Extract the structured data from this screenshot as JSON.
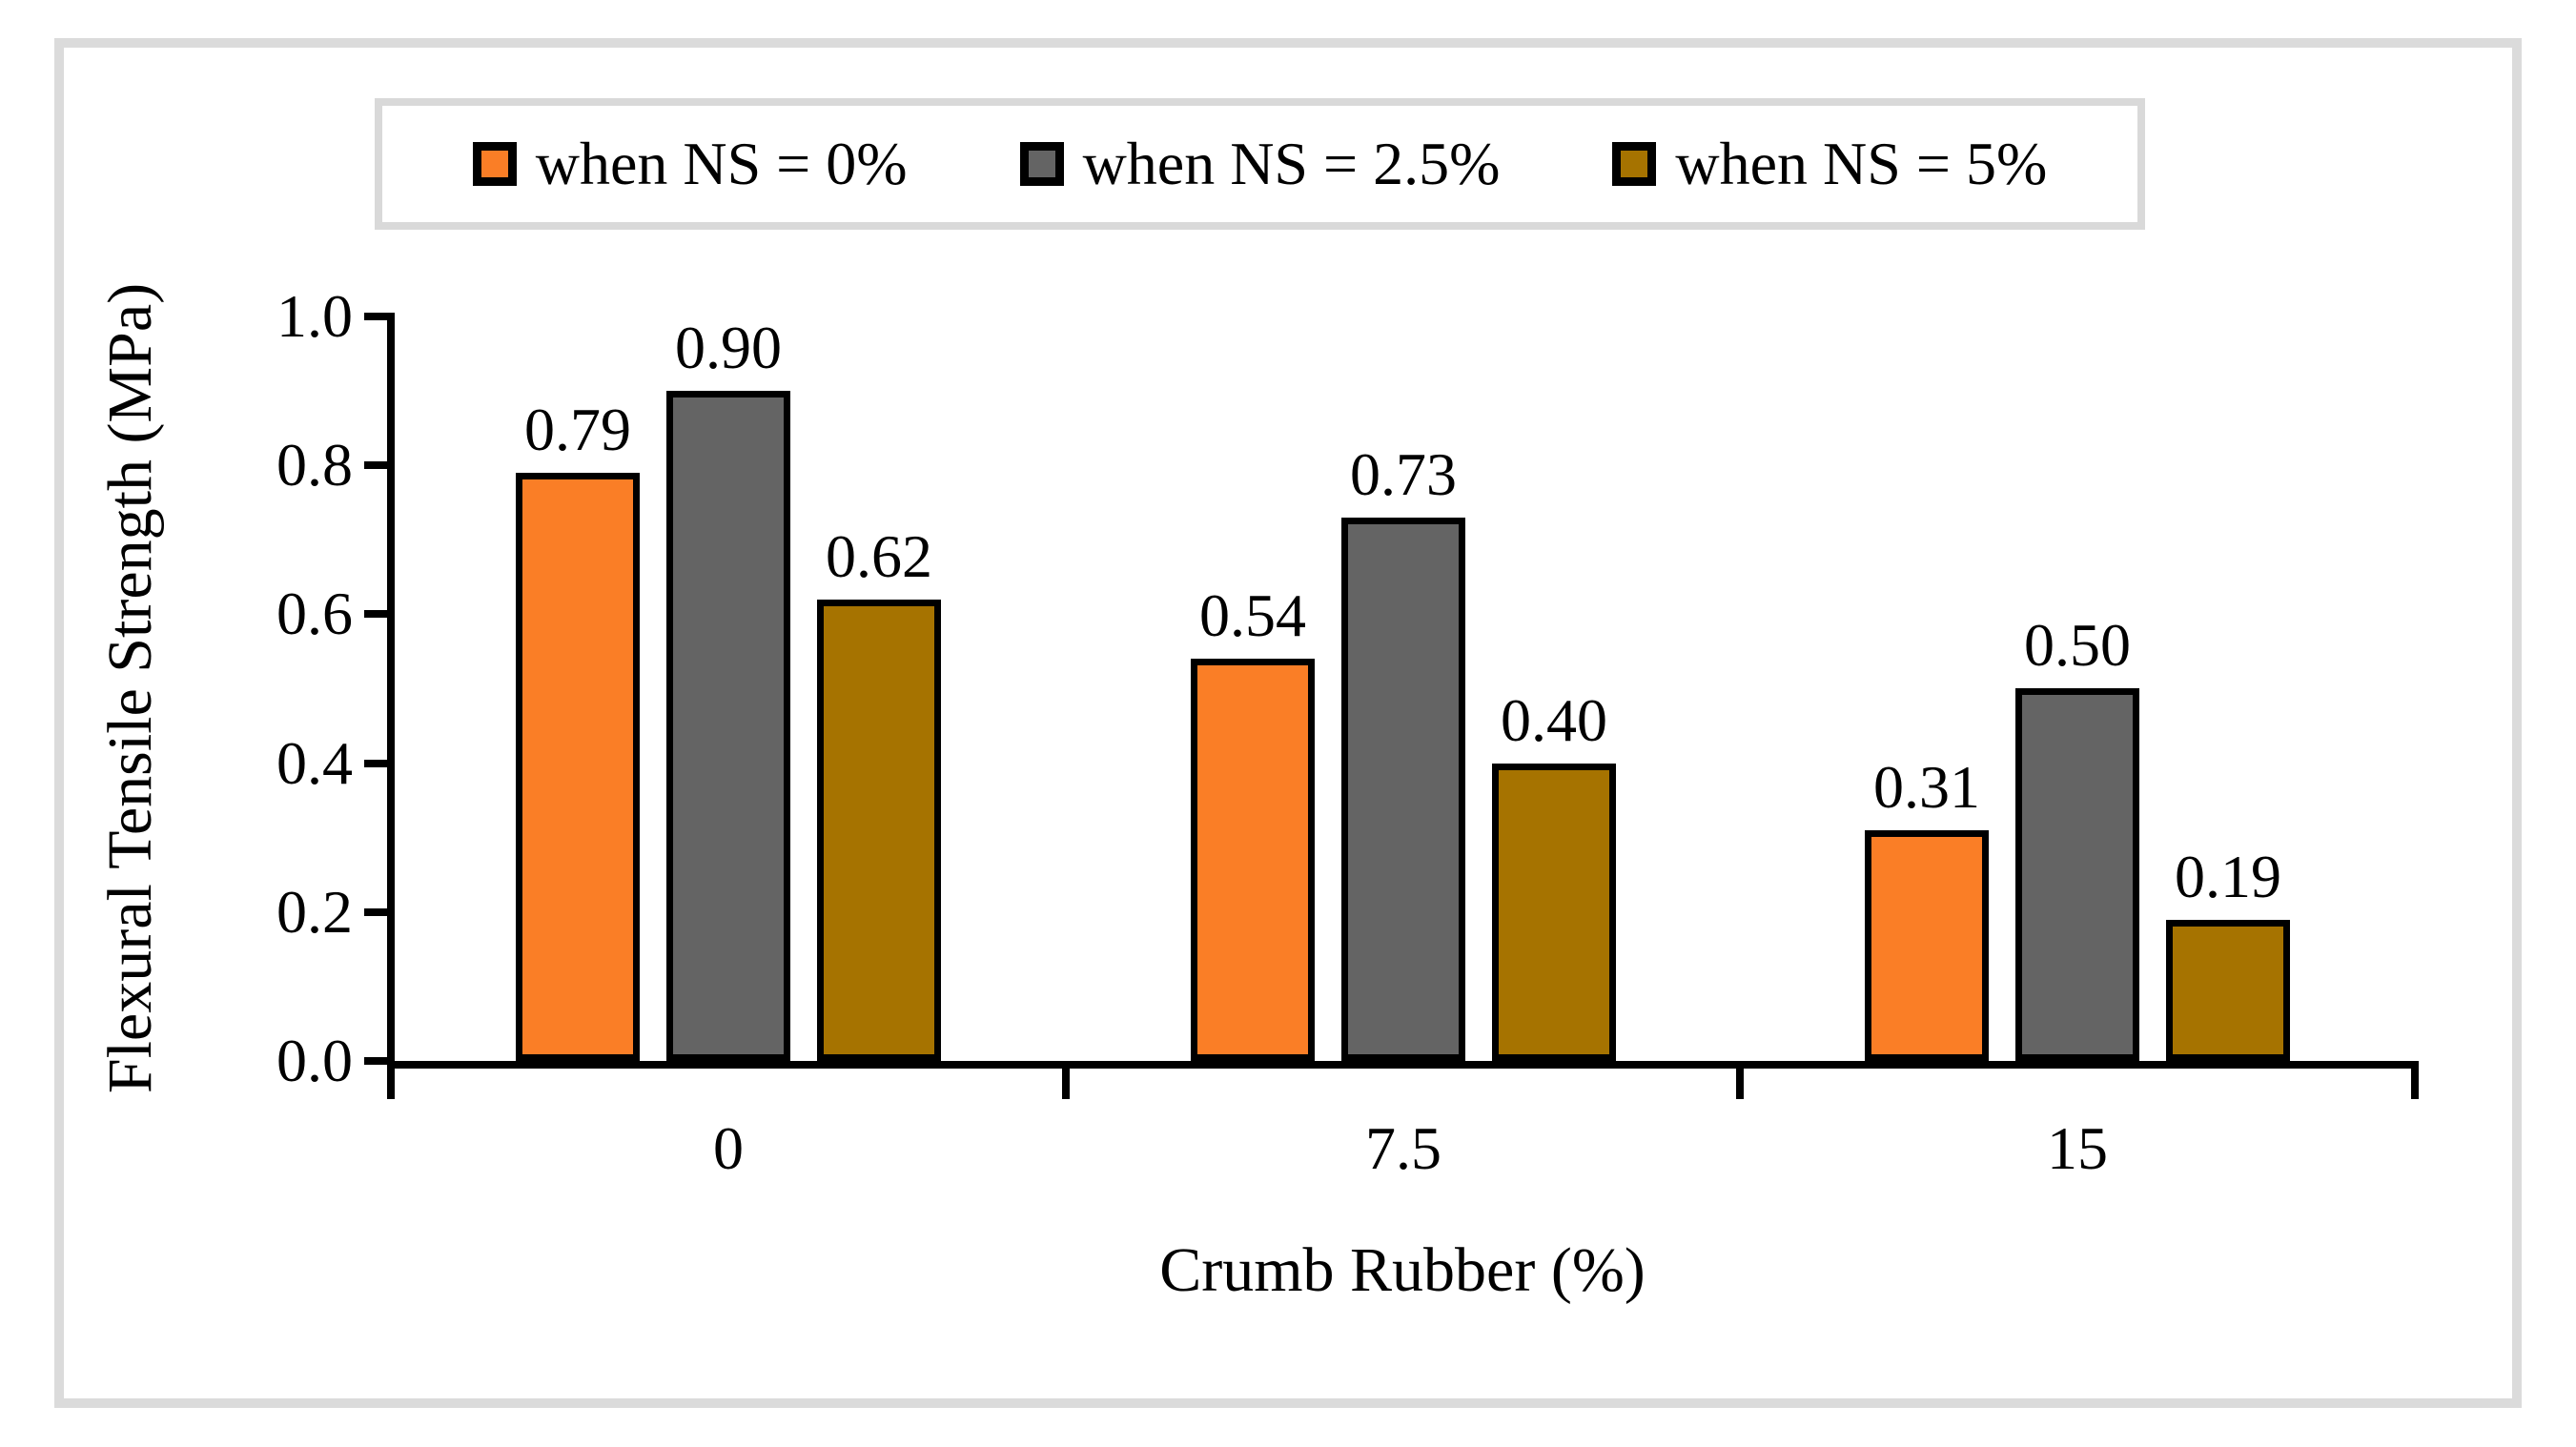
{
  "chart_data": {
    "type": "bar",
    "title": "",
    "categories": [
      "0",
      "7.5",
      "15"
    ],
    "series": [
      {
        "name": "when NS = 0%",
        "color": "#FA7E26",
        "values": [
          0.79,
          0.54,
          0.31
        ]
      },
      {
        "name": "when NS = 2.5%",
        "color": "#646464",
        "values": [
          0.9,
          0.73,
          0.5
        ]
      },
      {
        "name": "when NS = 5%",
        "color": "#A67300",
        "values": [
          0.62,
          0.4,
          0.19
        ]
      }
    ],
    "data_labels": [
      [
        "0.79",
        "0.54",
        "0.31"
      ],
      [
        "0.90",
        "0.73",
        "0.50"
      ],
      [
        "0.62",
        "0.40",
        "0.19"
      ]
    ],
    "xlabel": "Crumb Rubber (%)",
    "ylabel": "Flexural Tensile Strength (MPa)",
    "ylim": [
      0.0,
      1.0
    ],
    "yticks": [
      "0.0",
      "0.2",
      "0.4",
      "0.6",
      "0.8",
      "1.0"
    ],
    "legend_position": "top",
    "grid": false
  },
  "colors": {
    "frame_border": "#DBDBDB",
    "legend_border": "#D9D9D9",
    "bar_border": "#000000",
    "axis": "#000000",
    "text": "#000000"
  }
}
